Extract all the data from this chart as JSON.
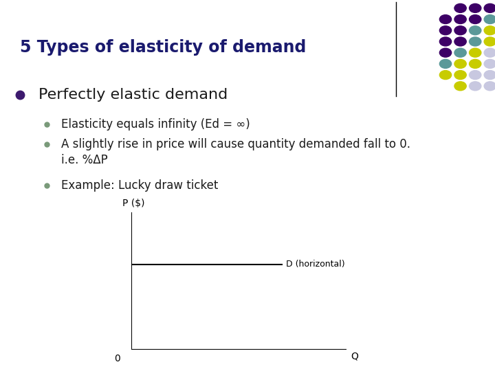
{
  "title": "5 Types of elasticity of demand",
  "title_color": "#1a1a6e",
  "title_fontsize": 17,
  "bg_color": "#ffffff",
  "bullet1": "Perfectly elastic demand",
  "bullet1_color": "#1a1a1a",
  "bullet1_fontsize": 16,
  "sub_bullet_color": "#1a1a1a",
  "sub_bullet_fontsize": 12,
  "graph_xlabel": "Q",
  "graph_ylabel": "P ($)",
  "graph_d_label": "D (horizontal)",
  "main_bullet_dot_color": "#3d1a6e",
  "sub_bullet_dot_color": "#7a9a7a",
  "separator_color": "#000000",
  "dot_grid": [
    [
      "#3d0066",
      "#3d0066",
      "#3d0066"
    ],
    [
      "#3d0066",
      "#3d0066",
      "#3d0066",
      "#5b9999"
    ],
    [
      "#3d0066",
      "#3d0066",
      "#5b9999",
      "#c8cc00"
    ],
    [
      "#3d0066",
      "#3d0066",
      "#5b9999",
      "#c8cc00"
    ],
    [
      "#3d0066",
      "#5b9999",
      "#c8cc00",
      "#c8c8e0"
    ],
    [
      "#5b9999",
      "#c8cc00",
      "#c8cc00",
      "#c8c8e0"
    ],
    [
      "#c8cc00",
      "#c8cc00",
      "#c8c8e0",
      "#c8c8e0"
    ],
    [
      "#c8cc00",
      "#c8c8e0",
      "#c8c8e0"
    ]
  ]
}
